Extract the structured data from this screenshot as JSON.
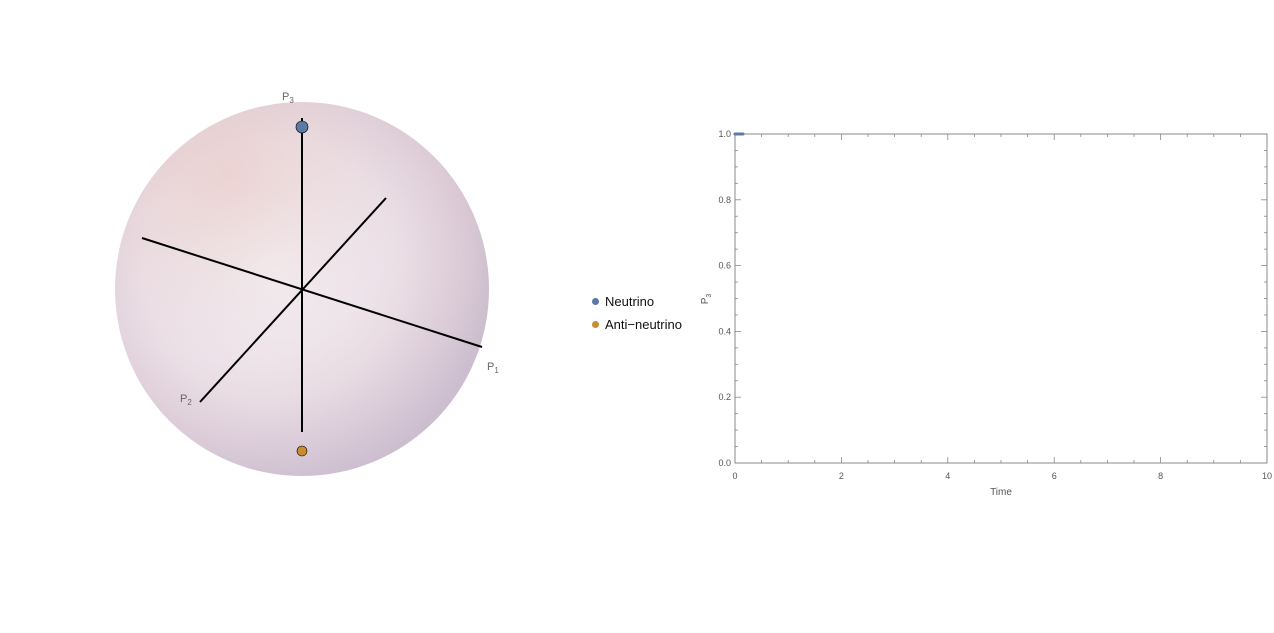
{
  "sphere": {
    "axis_labels": {
      "p1": "P",
      "p1_sub": "1",
      "p2": "P",
      "p2_sub": "2",
      "p3": "P",
      "p3_sub": "3"
    },
    "points": [
      {
        "name": "Neutrino",
        "p3": 1.0,
        "color": "#5b7aa6"
      },
      {
        "name": "Anti-neutrino",
        "p3": -1.0,
        "color": "#c98c2e"
      }
    ]
  },
  "legend": {
    "items": [
      {
        "label": "Neutrino",
        "color": "#5b7aa6"
      },
      {
        "label": "Anti−neutrino",
        "color": "#c98c2e"
      }
    ]
  },
  "chart_data": {
    "type": "line",
    "xlabel": "Time",
    "ylabel": "P",
    "ylabel_sub": "3",
    "xlim": [
      0,
      10
    ],
    "ylim": [
      0,
      1.0
    ],
    "x_ticks": [
      "0",
      "2",
      "4",
      "6",
      "8",
      "10"
    ],
    "y_ticks": [
      "0.0",
      "0.2",
      "0.4",
      "0.6",
      "0.8",
      "1.0"
    ],
    "series": [
      {
        "name": "Neutrino",
        "color": "#5b7aa6",
        "x": [
          0,
          0.15
        ],
        "y": [
          1.0,
          1.0
        ]
      }
    ]
  }
}
